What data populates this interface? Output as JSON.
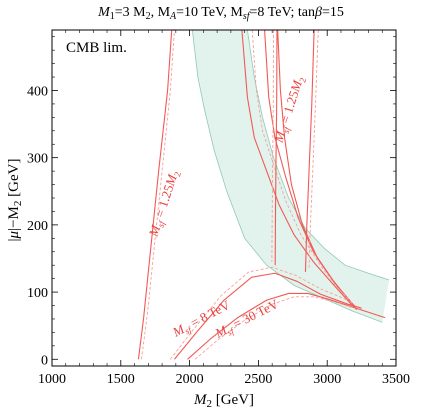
{
  "chart_data": {
    "type": "line",
    "title": "M1=3 M2, MA=10 TeV, Msf=8 TeV; tanβ=15",
    "title_parts": {
      "m1": "M",
      "m1_sub": "1",
      "m1_rest": "=3 M",
      "m1_rest_sub": "2",
      "ma": ", M",
      "ma_sub": "A",
      "ma_rest": "=10 TeV, M",
      "msf_sub": "sf",
      "msf_rest": "=8 TeV; tan",
      "beta": "β",
      "tail": "=15"
    },
    "xlabel": "M2 [GeV]",
    "xlabel_parts": {
      "main": "M",
      "sub": "2",
      "unit": " [GeV]"
    },
    "ylabel": "|μ|−M2 [GeV]",
    "ylabel_parts": {
      "pre": "|",
      "mu": "μ",
      "mid": "|−M",
      "sub": "2",
      "unit": " [GeV]"
    },
    "xlim": [
      1000,
      3500
    ],
    "ylim": [
      -10,
      490
    ],
    "x_ticks": [
      1000,
      1500,
      2000,
      2500,
      3000,
      3500
    ],
    "y_ticks": [
      0,
      100,
      200,
      300,
      400
    ],
    "x_tick_labels": [
      "1000",
      "1500",
      "2000",
      "2500",
      "3000",
      "3500"
    ],
    "y_tick_labels": [
      "0",
      "100",
      "200",
      "300",
      "400"
    ],
    "corner_label": "CMB lim.",
    "band": {
      "color": "#e2f3ee",
      "edge_color": "#8fc9b4",
      "upper": [
        [
          2420,
          490
        ],
        [
          2470,
          420
        ],
        [
          2530,
          360
        ],
        [
          2610,
          300
        ],
        [
          2720,
          240
        ],
        [
          2840,
          195
        ],
        [
          2980,
          165
        ],
        [
          3130,
          140
        ],
        [
          3300,
          128
        ],
        [
          3450,
          118
        ]
      ],
      "lower": [
        [
          2020,
          490
        ],
        [
          2060,
          420
        ],
        [
          2110,
          370
        ],
        [
          2180,
          310
        ],
        [
          2270,
          250
        ],
        [
          2400,
          180
        ],
        [
          2560,
          140
        ],
        [
          2760,
          110
        ],
        [
          2980,
          90
        ],
        [
          3180,
          72
        ],
        [
          3400,
          55
        ]
      ]
    },
    "series": [
      {
        "id": "left-125",
        "color": "#f05a55",
        "points": [
          [
            1628,
            0
          ],
          [
            1665,
            60
          ],
          [
            1715,
            160
          ],
          [
            1775,
            280
          ],
          [
            1840,
            400
          ],
          [
            1870,
            490
          ]
        ]
      },
      {
        "id": "left-125-dash",
        "color": "#f6a09c",
        "dashed": true,
        "points": [
          [
            1650,
            0
          ],
          [
            1695,
            70
          ],
          [
            1745,
            170
          ],
          [
            1805,
            290
          ],
          [
            1860,
            400
          ],
          [
            1890,
            490
          ]
        ]
      },
      {
        "id": "upper-125-a",
        "color": "#f05a55",
        "points": [
          [
            2380,
            490
          ],
          [
            2420,
            390
          ],
          [
            2470,
            330
          ],
          [
            2560,
            280
          ],
          [
            2650,
            230
          ],
          [
            2760,
            185
          ],
          [
            2900,
            145
          ],
          [
            3050,
            110
          ],
          [
            3160,
            85
          ],
          [
            3215,
            74
          ]
        ]
      },
      {
        "id": "upper-125-b",
        "color": "#f05a55",
        "points": [
          [
            2545,
            490
          ],
          [
            2575,
            390
          ],
          [
            2620,
            330
          ],
          [
            2700,
            270
          ],
          [
            2790,
            210
          ],
          [
            2900,
            160
          ],
          [
            3040,
            118
          ],
          [
            3150,
            90
          ],
          [
            3205,
            78
          ]
        ]
      },
      {
        "id": "upper-125-c",
        "color": "#f05a55",
        "points": [
          [
            2640,
            490
          ],
          [
            2660,
            400
          ],
          [
            2690,
            330
          ],
          [
            2740,
            260
          ],
          [
            2820,
            200
          ],
          [
            2930,
            150
          ],
          [
            3060,
            112
          ],
          [
            3170,
            86
          ]
        ]
      },
      {
        "id": "upper-125-dash",
        "color": "#f6a09c",
        "dashed": true,
        "points": [
          [
            2455,
            490
          ],
          [
            2485,
            400
          ],
          [
            2530,
            340
          ],
          [
            2610,
            290
          ],
          [
            2700,
            235
          ],
          [
            2810,
            185
          ],
          [
            2950,
            140
          ],
          [
            3080,
            105
          ],
          [
            3180,
            84
          ]
        ]
      },
      {
        "id": "vert-1",
        "color": "#f05a55",
        "points": [
          [
            2635,
            490
          ],
          [
            2633,
            380
          ],
          [
            2628,
            300
          ],
          [
            2624,
            210
          ],
          [
            2622,
            140
          ]
        ]
      },
      {
        "id": "vert-1-dash",
        "color": "#f6a09c",
        "dashed": true,
        "points": [
          [
            2610,
            490
          ],
          [
            2608,
            380
          ],
          [
            2604,
            300
          ],
          [
            2600,
            210
          ],
          [
            2598,
            145
          ]
        ]
      },
      {
        "id": "vert-2",
        "color": "#f05a55",
        "points": [
          [
            2905,
            490
          ],
          [
            2888,
            380
          ],
          [
            2868,
            280
          ],
          [
            2852,
            200
          ],
          [
            2842,
            130
          ]
        ]
      },
      {
        "id": "vert-2-dash",
        "color": "#f6a09c",
        "dashed": true,
        "points": [
          [
            2935,
            490
          ],
          [
            2915,
            380
          ],
          [
            2895,
            280
          ],
          [
            2878,
            200
          ],
          [
            2868,
            135
          ]
        ]
      },
      {
        "id": "arc-8tev",
        "color": "#f05a55",
        "points": [
          [
            1890,
            0
          ],
          [
            2050,
            40
          ],
          [
            2250,
            88
          ],
          [
            2450,
            122
          ],
          [
            2620,
            128
          ],
          [
            2780,
            116
          ],
          [
            2950,
            97
          ],
          [
            3150,
            82
          ],
          [
            3250,
            76
          ]
        ]
      },
      {
        "id": "arc-8tev-dash",
        "color": "#f6a09c",
        "dashed": true,
        "points": [
          [
            1860,
            0
          ],
          [
            2030,
            45
          ],
          [
            2230,
            95
          ],
          [
            2430,
            130
          ],
          [
            2600,
            137
          ],
          [
            2770,
            125
          ],
          [
            2950,
            105
          ],
          [
            3150,
            88
          ]
        ]
      },
      {
        "id": "arc-30tev",
        "color": "#f05a55",
        "points": [
          [
            1985,
            0
          ],
          [
            2150,
            30
          ],
          [
            2350,
            62
          ],
          [
            2560,
            88
          ],
          [
            2720,
            98
          ],
          [
            2860,
            98
          ],
          [
            3000,
            90
          ],
          [
            3150,
            80
          ],
          [
            3300,
            70
          ],
          [
            3420,
            62
          ]
        ]
      },
      {
        "id": "arc-30tev-dash",
        "color": "#f6a09c",
        "dashed": true,
        "points": [
          [
            2040,
            0
          ],
          [
            2200,
            28
          ],
          [
            2400,
            58
          ],
          [
            2600,
            82
          ],
          [
            2760,
            93
          ],
          [
            2900,
            93
          ],
          [
            3040,
            86
          ],
          [
            3200,
            76
          ]
        ]
      }
    ],
    "annotations": [
      {
        "x": 1840,
        "y": 230,
        "text": "Msf = 1.25M2",
        "rotate": -72
      },
      {
        "x": 2750,
        "y": 370,
        "text": "Msf = 1.25M2",
        "rotate": -72
      },
      {
        "x": 2100,
        "y": 55,
        "text": "Msf = 8 TeV",
        "rotate": -28
      },
      {
        "x": 2430,
        "y": 55,
        "text": "Msf = 30 TeV",
        "rotate": -27
      }
    ],
    "annotation_parts": {
      "a": {
        "m": "M",
        "sub": "sf",
        "rest": " = 1.25",
        "m2": "M",
        "sub2": "2"
      },
      "b": {
        "m": "M",
        "sub": "sf",
        "rest": " = 8 TeV"
      },
      "c": {
        "m": "M",
        "sub": "sf",
        "rest": " = 30 TeV"
      }
    }
  }
}
